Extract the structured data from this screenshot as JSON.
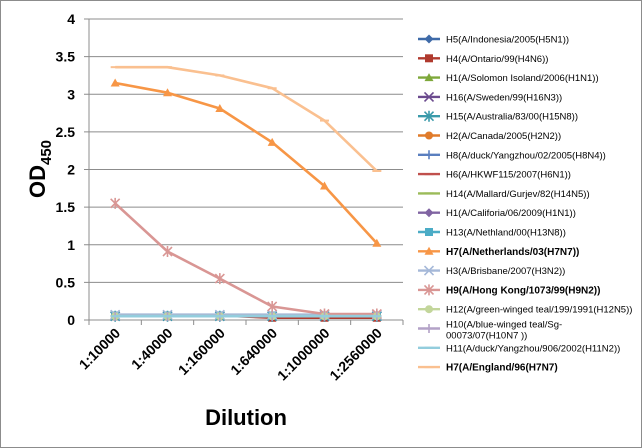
{
  "chart_data": {
    "type": "line",
    "xlabel": "Dilution",
    "ylabel_main": "OD",
    "ylabel_sub": "450",
    "ylim": [
      0,
      4
    ],
    "yticks": [
      "0",
      "0.5",
      "1",
      "1.5",
      "2",
      "2.5",
      "3",
      "3.5",
      "4"
    ],
    "grid": "horizontal",
    "legend_position": "right",
    "categories": [
      "1:10000",
      "1:40000",
      "1:160000",
      "1:640000",
      "1:1000000",
      "1:2560000"
    ],
    "series": [
      {
        "name": "H5(A/Indonesia/2005(H5N1))",
        "color": "#3e6aa8",
        "marker": "diamond",
        "bold": false,
        "values": [
          0.05,
          0.05,
          0.05,
          0.05,
          0.05,
          0.05
        ]
      },
      {
        "name": "H4(A/Ontario/99(H4N6))",
        "color": "#b03a2e",
        "marker": "square",
        "bold": false,
        "values": [
          0.06,
          0.06,
          0.06,
          0.03,
          0.03,
          0.03
        ]
      },
      {
        "name": "H1(A/Solomon Isoland/2006(H1N1))",
        "color": "#7ea83a",
        "marker": "triangle",
        "bold": false,
        "values": [
          0.05,
          0.05,
          0.05,
          0.05,
          0.05,
          0.05
        ]
      },
      {
        "name": "H16(A/Sweden/99(H16N3))",
        "color": "#6b4a8e",
        "marker": "x",
        "bold": false,
        "values": [
          0.05,
          0.05,
          0.05,
          0.05,
          0.05,
          0.05
        ]
      },
      {
        "name": "H15(A/Australia/83/00(H15N8))",
        "color": "#3a9aaa",
        "marker": "star",
        "bold": false,
        "values": [
          0.05,
          0.05,
          0.05,
          0.05,
          0.05,
          0.05
        ]
      },
      {
        "name": "H2(A/Canada/2005(H2N2))",
        "color": "#e07b2a",
        "marker": "circle",
        "bold": false,
        "values": [
          0.05,
          0.05,
          0.05,
          0.05,
          0.05,
          0.05
        ]
      },
      {
        "name": "H8(A/duck/Yangzhou/02/2005(H8N4))",
        "color": "#5a7fbf",
        "marker": "plus",
        "bold": false,
        "values": [
          0.05,
          0.05,
          0.05,
          0.05,
          0.05,
          0.05
        ]
      },
      {
        "name": "H6(A/HKWF115/2007(H6N1))",
        "color": "#c0504d",
        "marker": "dash",
        "bold": false,
        "values": [
          0.05,
          0.05,
          0.05,
          0.05,
          0.05,
          0.05
        ]
      },
      {
        "name": "H14(A/Mallard/Gurjev/82(H14N5))",
        "color": "#9bbb59",
        "marker": "dash",
        "bold": false,
        "values": [
          0.05,
          0.05,
          0.05,
          0.05,
          0.05,
          0.05
        ]
      },
      {
        "name": "H1(A/Califoria/06/2009(H1N1))",
        "color": "#8064a2",
        "marker": "diamond",
        "bold": false,
        "values": [
          0.05,
          0.05,
          0.05,
          0.05,
          0.05,
          0.05
        ]
      },
      {
        "name": "H13(A/Nethland/00(H13N8))",
        "color": "#4bacc6",
        "marker": "square",
        "bold": false,
        "values": [
          0.06,
          0.06,
          0.06,
          0.06,
          0.06,
          0.06
        ]
      },
      {
        "name": "H7(A/Netherlands/03(H7N7))",
        "color": "#f79646",
        "marker": "triangle",
        "bold": true,
        "values": [
          3.15,
          3.02,
          2.81,
          2.36,
          1.78,
          1.02
        ]
      },
      {
        "name": "H3(A/Brisbane/2007(H3N2))",
        "color": "#a5b8d8",
        "marker": "x",
        "bold": false,
        "values": [
          0.07,
          0.07,
          0.07,
          0.07,
          0.07,
          0.07
        ]
      },
      {
        "name": "H9(A/Hong Kong/1073/99(H9N2))",
        "color": "#d99694",
        "marker": "star",
        "bold": true,
        "values": [
          1.55,
          0.91,
          0.55,
          0.18,
          0.08,
          0.08
        ]
      },
      {
        "name": "H12(A/green-winged teal/199/1991(H12N5))",
        "color": "#c3d69b",
        "marker": "circle",
        "bold": false,
        "values": [
          0.05,
          0.05,
          0.05,
          0.05,
          0.05,
          0.05
        ]
      },
      {
        "name": "H10(A/blue-winged teal/Sg-00073/07(H10N7 ))",
        "color": "#b3a2c7",
        "marker": "plus",
        "bold": false,
        "values": [
          0.05,
          0.05,
          0.05,
          0.05,
          0.05,
          0.05
        ]
      },
      {
        "name": "H11(A/duck/Yangzhou/906/2002(H11N2))",
        "color": "#93cddd",
        "marker": "dash",
        "bold": false,
        "values": [
          0.05,
          0.05,
          0.05,
          0.05,
          0.05,
          0.05
        ]
      },
      {
        "name": "H7(A/England/96(H7N7)",
        "color": "#fac090",
        "marker": "dash",
        "bold": true,
        "values": [
          3.36,
          3.36,
          3.25,
          3.08,
          2.65,
          1.98
        ]
      }
    ]
  }
}
